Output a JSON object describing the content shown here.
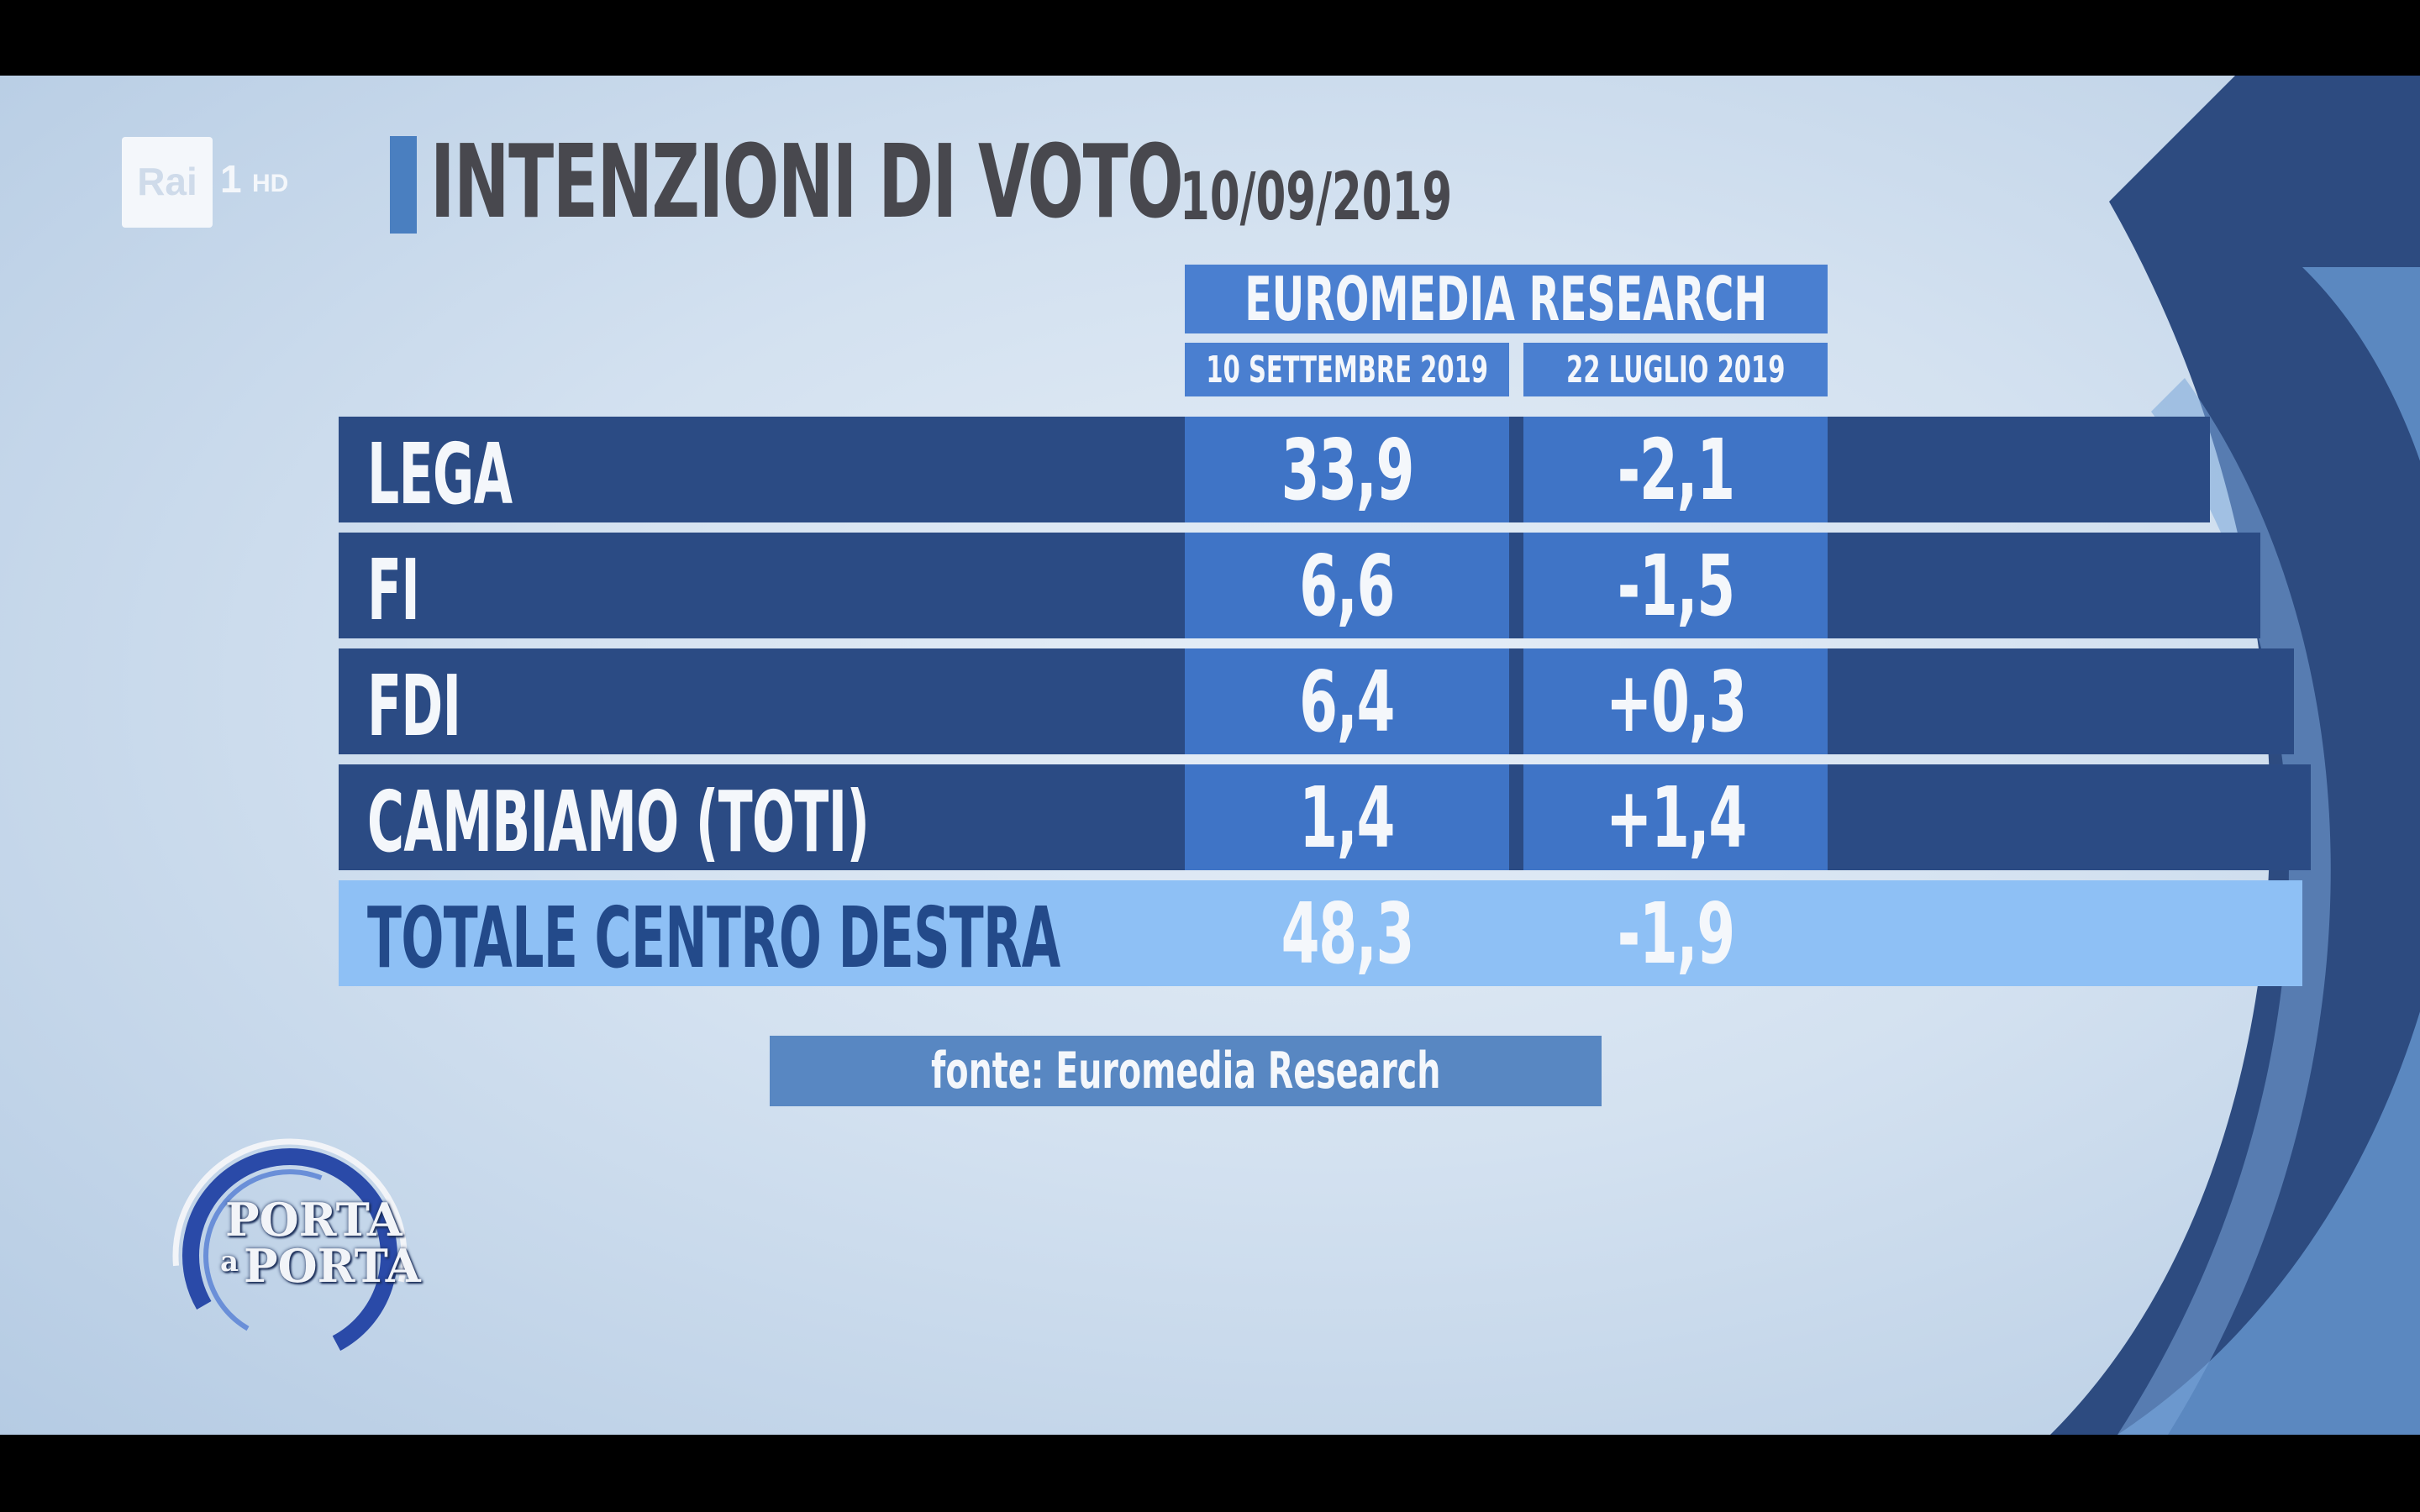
{
  "channel": {
    "logo_text": "Rai",
    "channel_number": "1",
    "quality": "HD"
  },
  "title": {
    "main": "INTENZIONI DI VOTO",
    "date": "10/09/2019"
  },
  "table": {
    "source_header": "EUROMEDIA RESEARCH",
    "columns": [
      "10 SETTEMBRE 2019",
      "22 LUGLIO 2019"
    ],
    "rows": [
      {
        "party": "LEGA",
        "value": "33,9",
        "delta": "-2,1"
      },
      {
        "party": "FI",
        "value": "6,6",
        "delta": "-1,5"
      },
      {
        "party": "FDI",
        "value": "6,4",
        "delta": "+0,3"
      },
      {
        "party": "CAMBIAMO (TOTI)",
        "value": "1,4",
        "delta": "+1,4"
      }
    ],
    "total": {
      "party": "TOTALE CENTRO DESTRA",
      "value": "48,3",
      "delta": "-1,9"
    }
  },
  "source_note": "fonte: Euromedia Research",
  "program_logo": {
    "line1": "PORTA",
    "connector": "a",
    "line2": "PORTA"
  },
  "colors": {
    "header_blue": "#4a7fd0",
    "row_dark": "#2b4b84",
    "cell_mid": "#3f74c6",
    "total_light": "#8ec0f5",
    "title_gray": "#48484e"
  }
}
